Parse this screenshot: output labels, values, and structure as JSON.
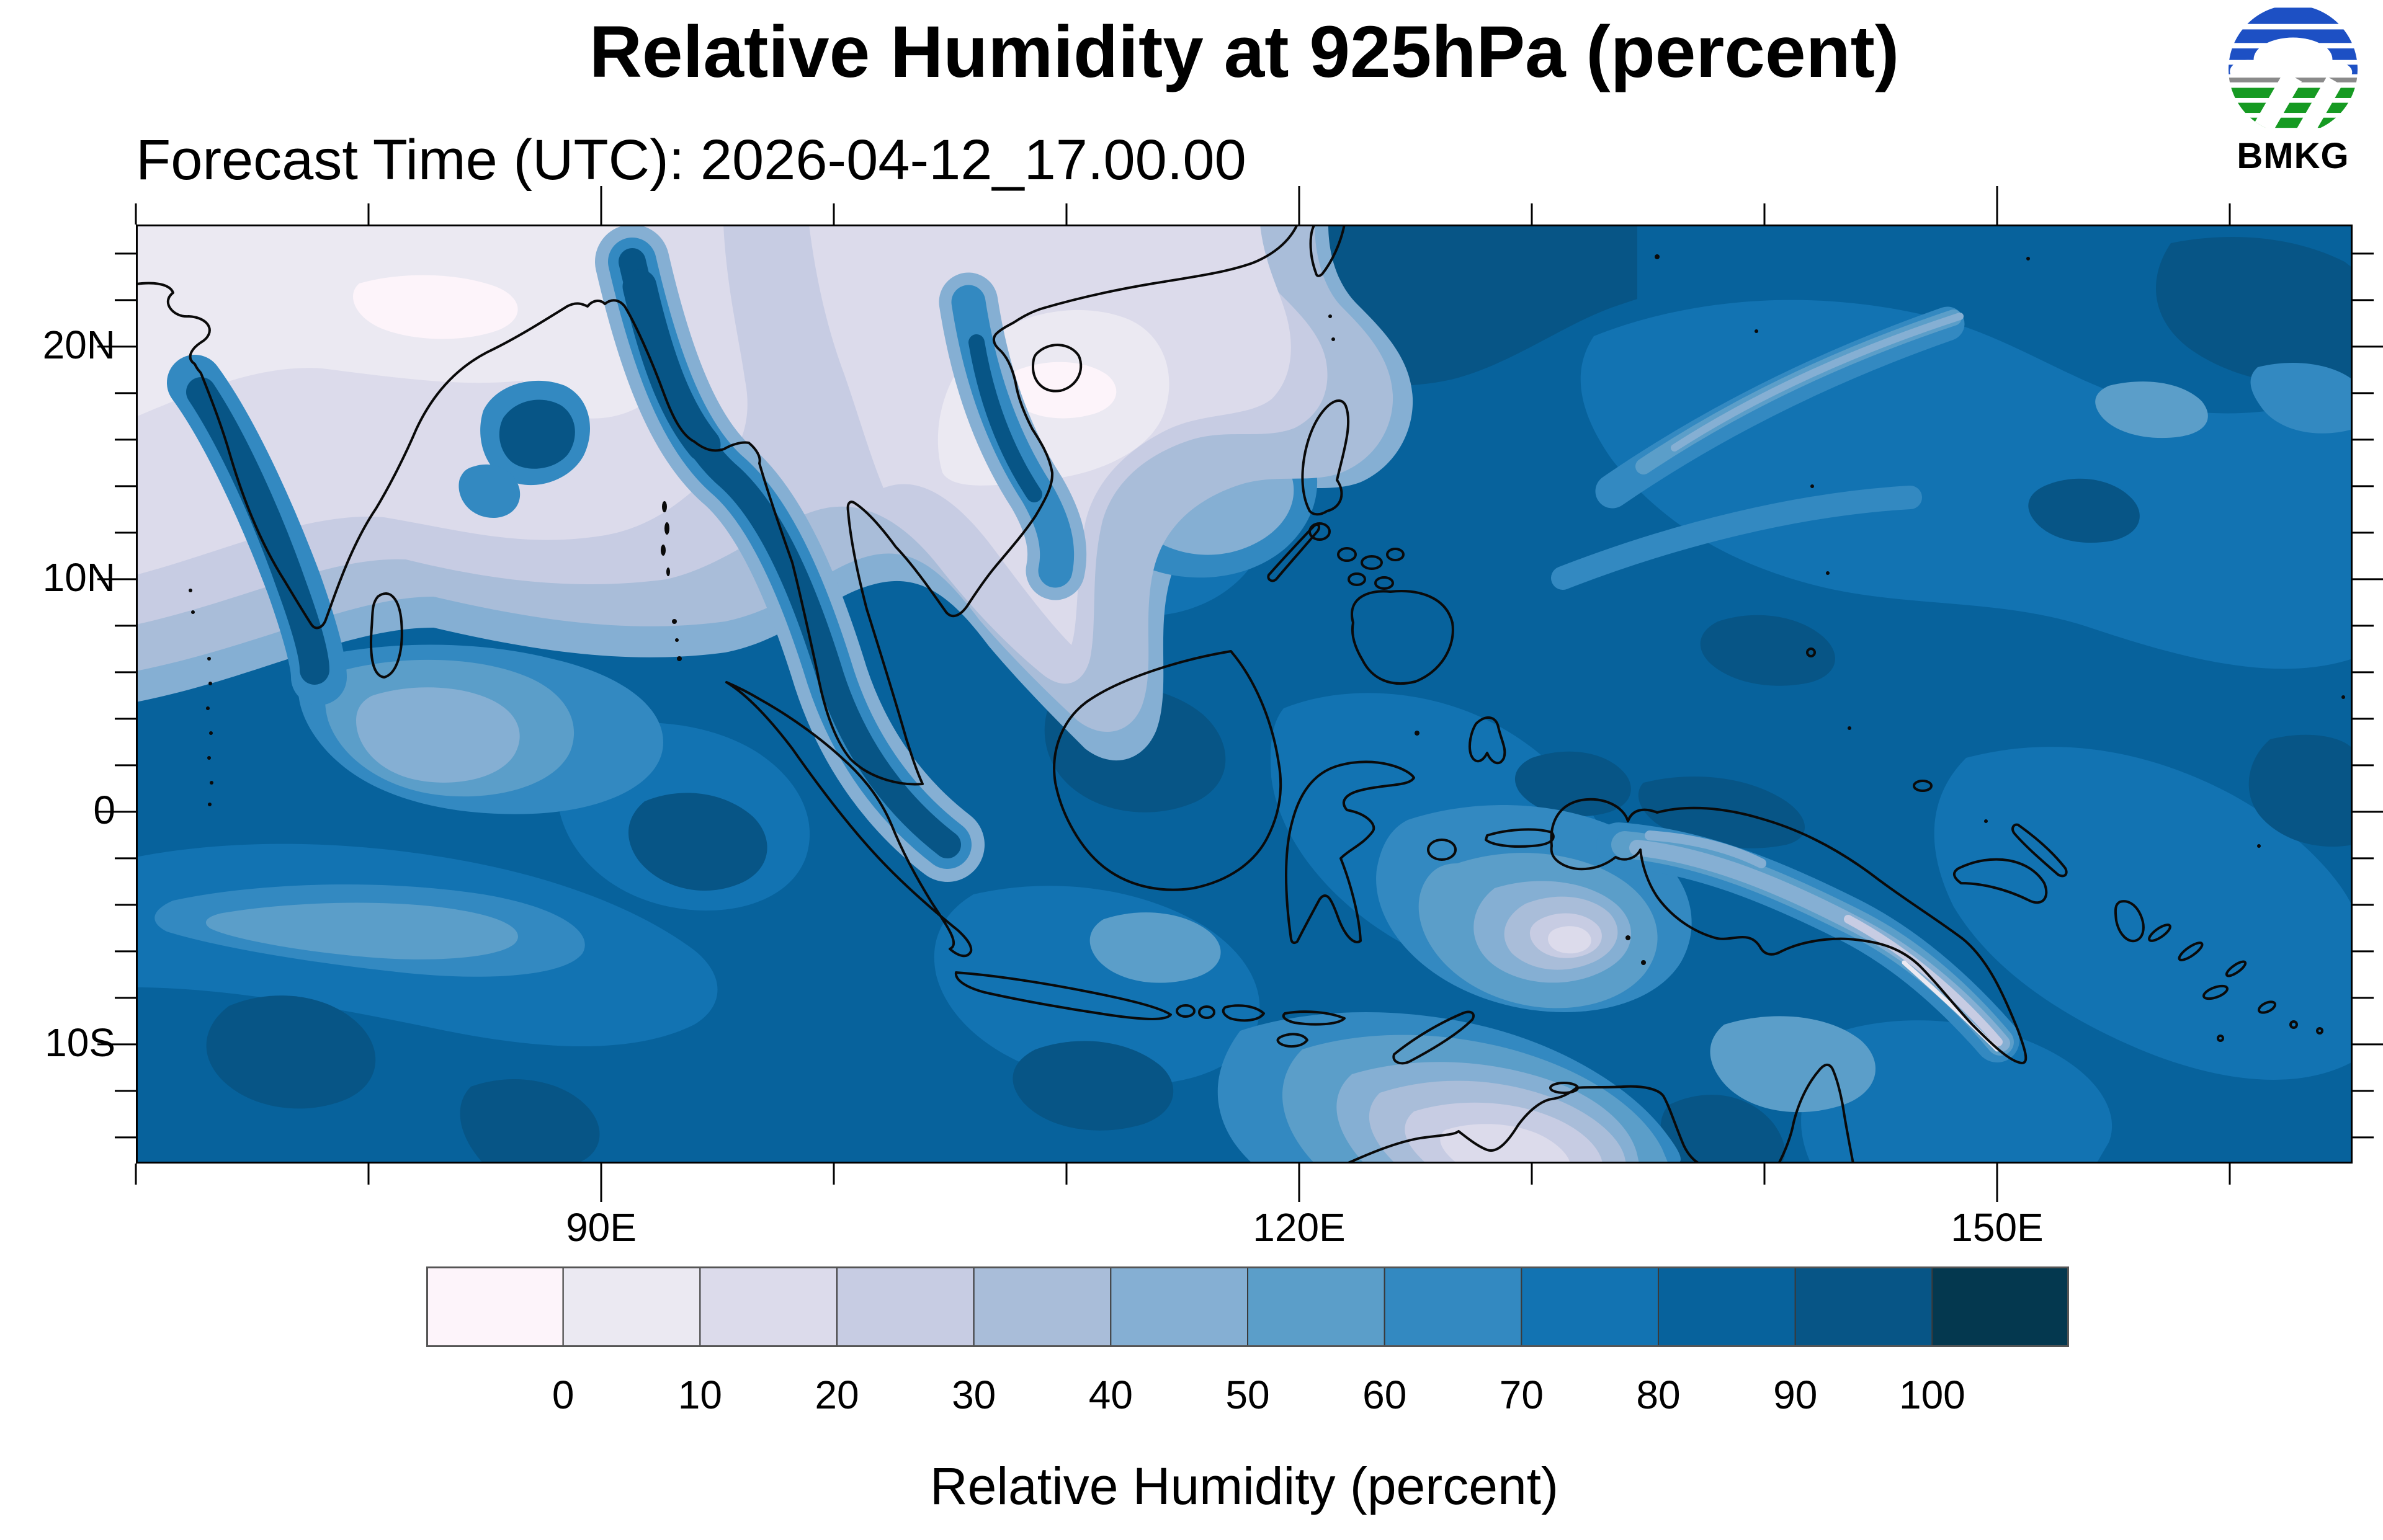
{
  "header": {
    "title": "Relative Humidity at 925hPa (percent)",
    "forecast": "Forecast Time (UTC): 2026-04-12_17.00.00"
  },
  "logo": {
    "text": "BMKG",
    "blue": "#1d50c4",
    "green": "#169a22",
    "divider": "#8a8a8a"
  },
  "axes": {
    "y": {
      "labels": [
        {
          "text": "20N",
          "lat": 20
        },
        {
          "text": "10N",
          "lat": 10
        },
        {
          "text": "0",
          "lat": 0
        },
        {
          "text": "10S",
          "lat": -10
        }
      ],
      "minor": [
        24,
        22,
        18,
        16,
        14,
        12,
        8,
        6,
        4,
        2,
        -2,
        -4,
        -6,
        -8,
        -12,
        -14
      ]
    },
    "x": {
      "labels": [
        {
          "text": "90E",
          "lon": 90
        },
        {
          "text": "120E",
          "lon": 120
        },
        {
          "text": "150E",
          "lon": 150
        }
      ],
      "minor": [
        70,
        80,
        100,
        110,
        130,
        140,
        160
      ]
    },
    "domain": {
      "lon_min": 70,
      "lon_max": 165.3,
      "lat_min": -15.1,
      "lat_max": 25.25
    }
  },
  "colorbar": {
    "title": "Relative Humidity (percent)",
    "ticks": [
      {
        "label": "0",
        "value": 0
      },
      {
        "label": "10",
        "value": 10
      },
      {
        "label": "20",
        "value": 20
      },
      {
        "label": "30",
        "value": 30
      },
      {
        "label": "40",
        "value": 40
      },
      {
        "label": "50",
        "value": 50
      },
      {
        "label": "60",
        "value": 60
      },
      {
        "label": "70",
        "value": 70
      },
      {
        "label": "80",
        "value": 80
      },
      {
        "label": "90",
        "value": 90
      },
      {
        "label": "100",
        "value": 100
      }
    ],
    "colors": [
      "#fdf4fa",
      "#ebe9f2",
      "#dcdbeb",
      "#c7cce3",
      "#a9bdd9",
      "#85afd3",
      "#5b9ec9",
      "#3389c1",
      "#1273b2",
      "#07629c",
      "#075586",
      "#04384f"
    ]
  }
}
